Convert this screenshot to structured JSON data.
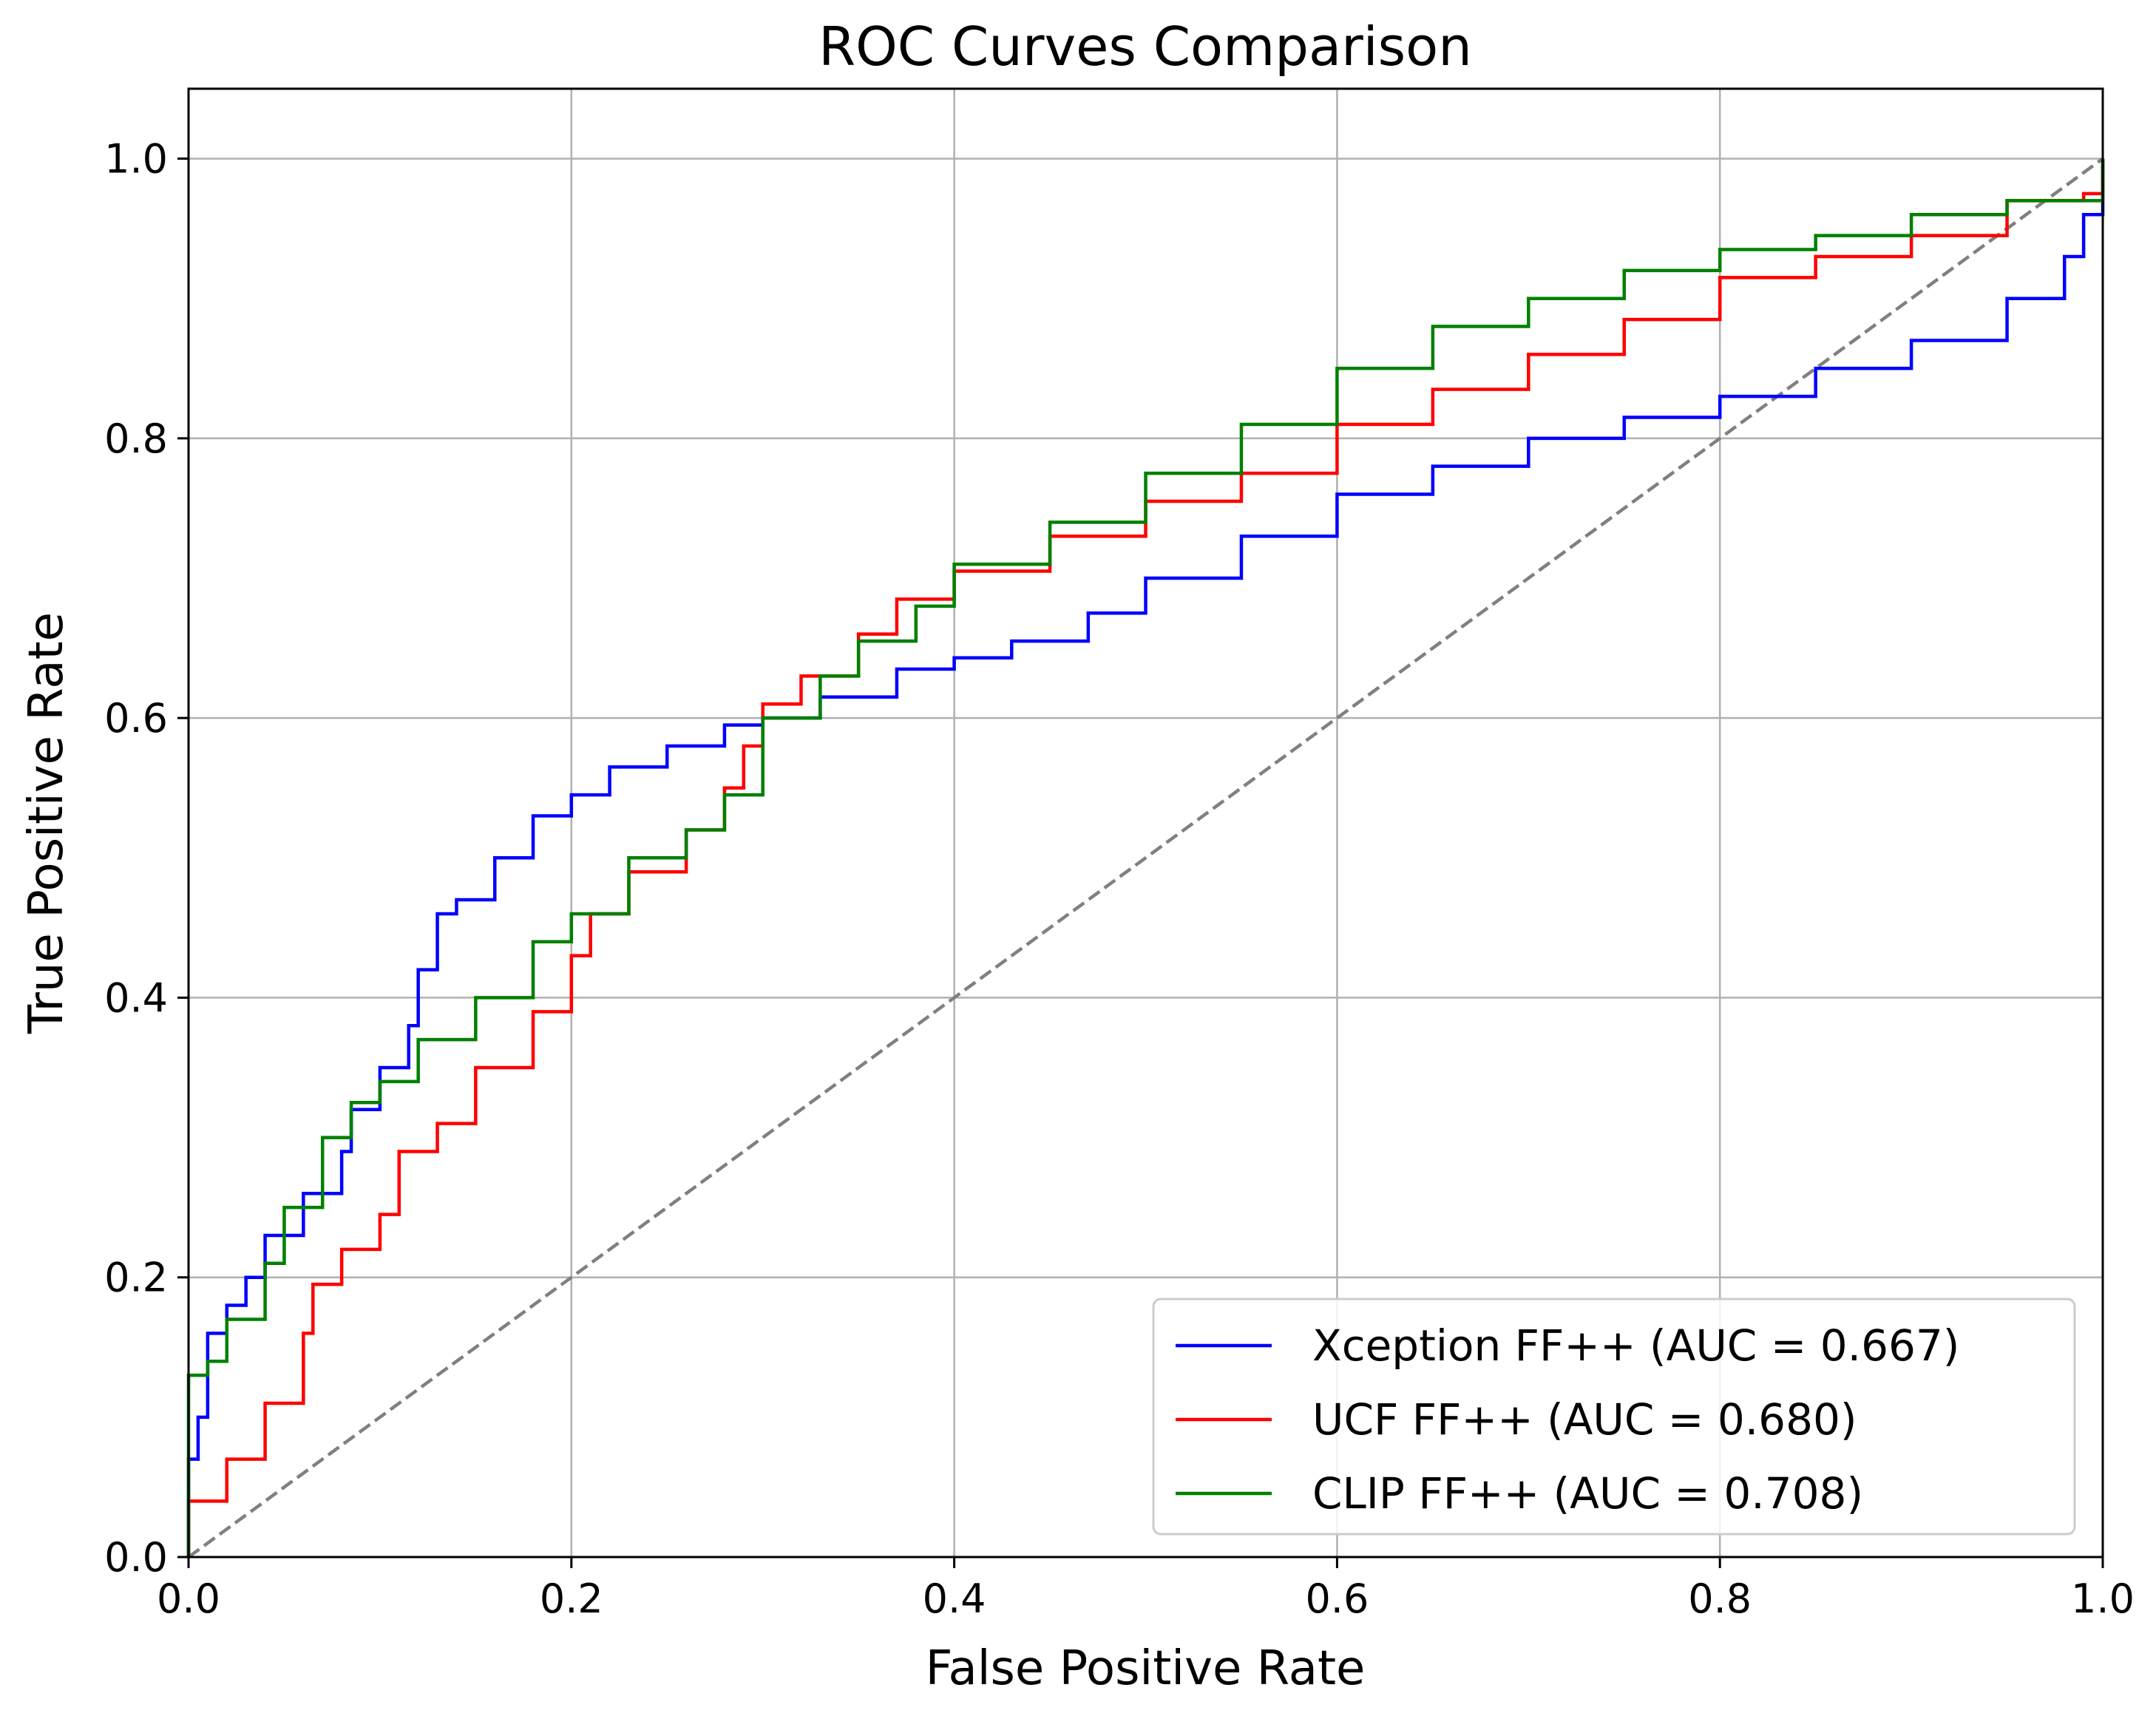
{
  "chart_data": {
    "type": "line",
    "title": "ROC Curves Comparison",
    "xlabel": "False Positive Rate",
    "ylabel": "True Positive Rate",
    "xlim": [
      0,
      1.0
    ],
    "ylim": [
      0,
      1.05
    ],
    "xticks": [
      "0.0",
      "0.2",
      "0.4",
      "0.6",
      "0.8",
      "1.0"
    ],
    "yticks": [
      "0.0",
      "0.2",
      "0.4",
      "0.6",
      "0.8",
      "1.0"
    ],
    "grid": true,
    "legend_position": "lower-right",
    "series": [
      {
        "name": "Xception FF++ (AUC = 0.667)",
        "color": "#0000ff",
        "x": [
          0,
          0,
          0.005,
          0.01,
          0.02,
          0.03,
          0.04,
          0.06,
          0.08,
          0.085,
          0.1,
          0.115,
          0.12,
          0.13,
          0.14,
          0.16,
          0.18,
          0.2,
          0.22,
          0.25,
          0.28,
          0.3,
          0.33,
          0.37,
          0.4,
          0.43,
          0.47,
          0.5,
          0.55,
          0.6,
          0.65,
          0.7,
          0.75,
          0.8,
          0.85,
          0.9,
          0.95,
          0.98,
          0.99,
          1
        ],
        "y": [
          0,
          0.07,
          0.1,
          0.16,
          0.18,
          0.2,
          0.23,
          0.26,
          0.29,
          0.32,
          0.35,
          0.38,
          0.42,
          0.46,
          0.47,
          0.5,
          0.53,
          0.545,
          0.565,
          0.58,
          0.595,
          0.6,
          0.615,
          0.635,
          0.643,
          0.655,
          0.675,
          0.7,
          0.73,
          0.76,
          0.78,
          0.8,
          0.815,
          0.83,
          0.85,
          0.87,
          0.9,
          0.93,
          0.96,
          1
        ]
      },
      {
        "name": "UCF FF++ (AUC = 0.680)",
        "color": "#ff0000",
        "x": [
          0,
          0,
          0.02,
          0.04,
          0.06,
          0.065,
          0.08,
          0.1,
          0.11,
          0.13,
          0.15,
          0.18,
          0.2,
          0.21,
          0.23,
          0.26,
          0.28,
          0.29,
          0.3,
          0.32,
          0.35,
          0.37,
          0.4,
          0.45,
          0.5,
          0.55,
          0.6,
          0.65,
          0.7,
          0.75,
          0.8,
          0.85,
          0.9,
          0.95,
          0.99,
          1
        ],
        "y": [
          0,
          0.04,
          0.07,
          0.11,
          0.16,
          0.195,
          0.22,
          0.245,
          0.29,
          0.31,
          0.35,
          0.39,
          0.43,
          0.46,
          0.49,
          0.52,
          0.55,
          0.58,
          0.61,
          0.63,
          0.66,
          0.685,
          0.705,
          0.73,
          0.755,
          0.775,
          0.81,
          0.835,
          0.86,
          0.885,
          0.915,
          0.93,
          0.945,
          0.97,
          0.975,
          1
        ]
      },
      {
        "name": "CLIP FF++ (AUC = 0.708)",
        "color": "#008000",
        "x": [
          0,
          0,
          0.01,
          0.02,
          0.04,
          0.05,
          0.07,
          0.085,
          0.1,
          0.12,
          0.15,
          0.18,
          0.2,
          0.23,
          0.26,
          0.28,
          0.3,
          0.33,
          0.35,
          0.38,
          0.4,
          0.45,
          0.5,
          0.55,
          0.6,
          0.65,
          0.7,
          0.75,
          0.8,
          0.85,
          0.9,
          0.95,
          1
        ],
        "y": [
          0,
          0.13,
          0.14,
          0.17,
          0.21,
          0.25,
          0.3,
          0.325,
          0.34,
          0.37,
          0.4,
          0.44,
          0.46,
          0.5,
          0.52,
          0.545,
          0.6,
          0.63,
          0.655,
          0.68,
          0.71,
          0.74,
          0.775,
          0.81,
          0.85,
          0.88,
          0.9,
          0.92,
          0.935,
          0.945,
          0.96,
          0.97,
          1
        ]
      }
    ],
    "reference_line": {
      "x": [
        0,
        1
      ],
      "y": [
        0,
        1
      ],
      "color": "#808080",
      "style": "dashed"
    }
  }
}
